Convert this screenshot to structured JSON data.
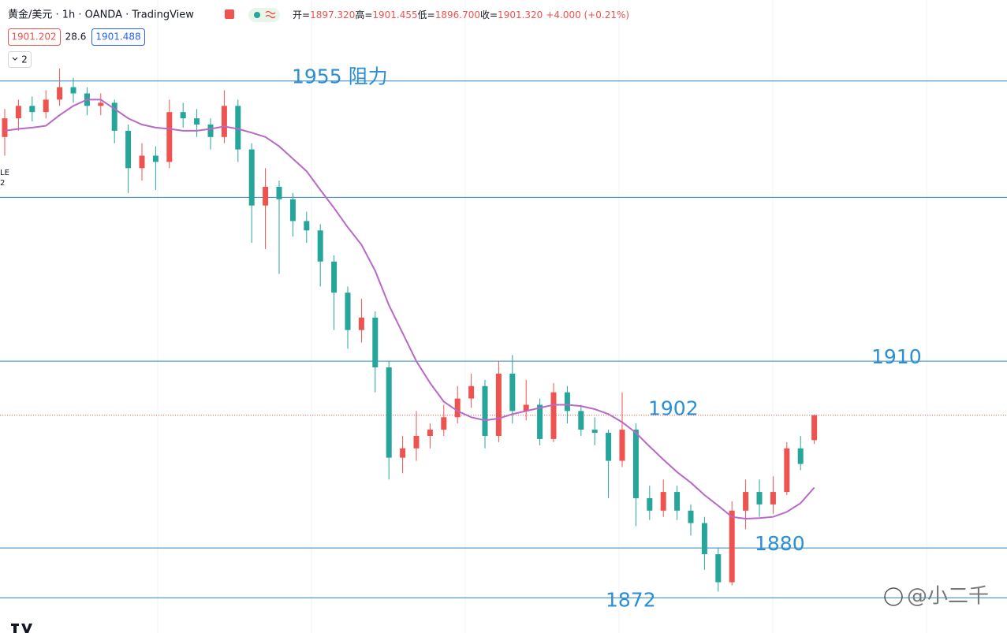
{
  "header": {
    "symbol": "黄金/美元 · 1h · OANDA · TradingView",
    "ohlc": [
      {
        "label": "开=",
        "value": "1897.320"
      },
      {
        "label": "高=",
        "value": "1901.455"
      },
      {
        "label": "低=",
        "value": "1896.700"
      },
      {
        "label": "收=",
        "value": "1901.320"
      }
    ],
    "change": "+4.000 (+0.21%)",
    "bid": "1901.202",
    "spread": "28.6",
    "ask": "1901.488",
    "indicators": "2",
    "edge_texts": [
      "LE",
      "2"
    ]
  },
  "chart_data": {
    "type": "candlestick",
    "up_color": "#ef5350",
    "down_color": "#26a69a",
    "ylim": [
      1866.35,
      1968
    ],
    "candles": [
      [
        1946,
        1950.5,
        1943,
        1949
      ],
      [
        1949,
        1952,
        1947,
        1951
      ],
      [
        1951,
        1952.5,
        1948.5,
        1950
      ],
      [
        1950,
        1953.5,
        1949,
        1952
      ],
      [
        1952,
        1957,
        1951,
        1954
      ],
      [
        1954,
        1955.5,
        1951.5,
        1953
      ],
      [
        1953,
        1954,
        1949.5,
        1951
      ],
      [
        1951,
        1953,
        1949.5,
        1951.5
      ],
      [
        1951.5,
        1952,
        1945,
        1947
      ],
      [
        1947,
        1948,
        1937,
        1941
      ],
      [
        1941,
        1945,
        1939,
        1943
      ],
      [
        1943,
        1944.5,
        1937.5,
        1942
      ],
      [
        1942,
        1952,
        1941,
        1950
      ],
      [
        1950,
        1951.5,
        1947.5,
        1949
      ],
      [
        1949,
        1950.5,
        1946,
        1948
      ],
      [
        1948,
        1949,
        1944,
        1946
      ],
      [
        1946,
        1953.5,
        1945,
        1951
      ],
      [
        1951,
        1952,
        1942,
        1944
      ],
      [
        1944,
        1945,
        1929,
        1935
      ],
      [
        1935,
        1941,
        1928,
        1938
      ],
      [
        1938,
        1939,
        1924,
        1936
      ],
      [
        1936,
        1937,
        1930,
        1932.5
      ],
      [
        1932.5,
        1934,
        1929,
        1931
      ],
      [
        1931,
        1932,
        1922,
        1926
      ],
      [
        1926,
        1927,
        1915,
        1921
      ],
      [
        1921,
        1922,
        1912,
        1915
      ],
      [
        1915,
        1920,
        1913,
        1917
      ],
      [
        1917,
        1918,
        1905,
        1909
      ],
      [
        1909,
        1910,
        1891,
        1894.5
      ],
      [
        1894.5,
        1898,
        1892,
        1896
      ],
      [
        1896,
        1902,
        1894,
        1898
      ],
      [
        1898,
        1900,
        1896,
        1899
      ],
      [
        1899,
        1903,
        1898,
        1901
      ],
      [
        1901,
        1906,
        1900,
        1904
      ],
      [
        1904,
        1908,
        1902.5,
        1906
      ],
      [
        1906,
        1907,
        1896,
        1898
      ],
      [
        1898,
        1910,
        1897,
        1908
      ],
      [
        1908,
        1911,
        1900,
        1902
      ],
      [
        1902,
        1907,
        1900.5,
        1903
      ],
      [
        1903,
        1904,
        1896.5,
        1897.5
      ],
      [
        1897.5,
        1906.5,
        1897,
        1905
      ],
      [
        1905,
        1906,
        1900,
        1902
      ],
      [
        1902,
        1903,
        1898,
        1899
      ],
      [
        1899,
        1901,
        1896.5,
        1898.5
      ],
      [
        1898.5,
        1899,
        1888,
        1894
      ],
      [
        1894,
        1905,
        1893,
        1899
      ],
      [
        1899,
        1900,
        1883.5,
        1888
      ],
      [
        1888,
        1890,
        1884.5,
        1886
      ],
      [
        1886,
        1891,
        1885,
        1889
      ],
      [
        1889,
        1890,
        1884.5,
        1886
      ],
      [
        1886,
        1887,
        1882,
        1884
      ],
      [
        1884,
        1885,
        1876.5,
        1879
      ],
      [
        1879,
        1880,
        1873,
        1874.5
      ],
      [
        1874.5,
        1887.5,
        1874,
        1886
      ],
      [
        1886,
        1891,
        1883,
        1889
      ],
      [
        1889,
        1891,
        1885,
        1887
      ],
      [
        1887,
        1891.5,
        1885.5,
        1889
      ],
      [
        1889,
        1897,
        1888.5,
        1896
      ],
      [
        1896,
        1898,
        1892.5,
        1893.5
      ],
      [
        1897.32,
        1901.455,
        1896.7,
        1901.32
      ]
    ],
    "ma": {
      "color": "#ba68c8",
      "values": [
        1947,
        1947.3,
        1947.5,
        1947.8,
        1949.5,
        1951,
        1952,
        1952,
        1950.5,
        1949,
        1948,
        1947.5,
        1947.3,
        1947,
        1947,
        1947.3,
        1947.7,
        1947.3,
        1946.7,
        1946,
        1944.5,
        1942.5,
        1940.5,
        1937.5,
        1934.6,
        1931.5,
        1928.7,
        1924.5,
        1919,
        1914.5,
        1910,
        1906.5,
        1903.5,
        1902,
        1901,
        1900.5,
        1900.8,
        1901.5,
        1902,
        1902.5,
        1903,
        1903,
        1902.8,
        1902.3,
        1901.5,
        1900.2,
        1898.5,
        1896.3,
        1894.2,
        1892.2,
        1890.5,
        1888.5,
        1886.8,
        1885,
        1884.7,
        1884.8,
        1885,
        1885.8,
        1887.2,
        1889.7
      ]
    },
    "level_color": "#2e86c1",
    "label_color": "#2b8fd6",
    "levels": [
      {
        "value": 1955,
        "label": "1955 阻力"
      },
      {
        "value": 1936.3
      },
      {
        "value": 1910,
        "label": "1910"
      },
      {
        "value": 1880,
        "label": "1880"
      },
      {
        "value": 1872,
        "label": "1872"
      }
    ],
    "annotations": [
      {
        "value": 1902,
        "label": "1902"
      }
    ]
  },
  "watermark": "@小二千"
}
